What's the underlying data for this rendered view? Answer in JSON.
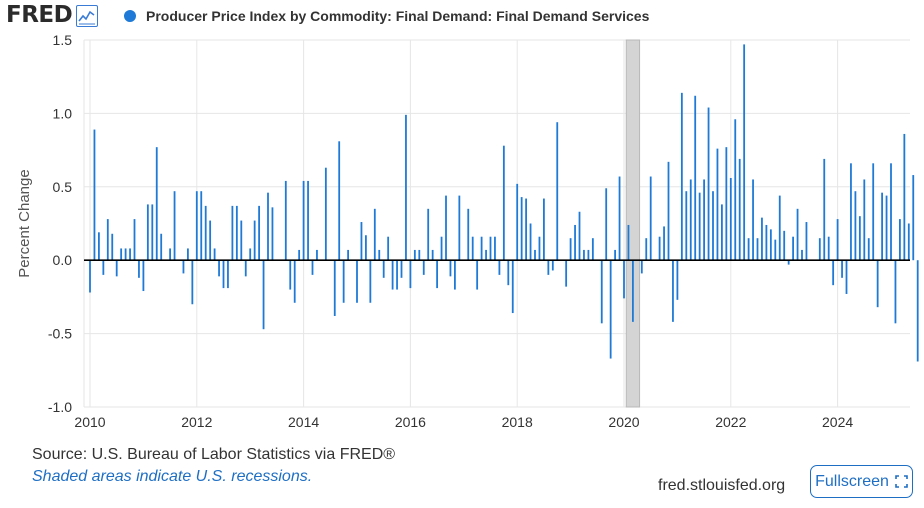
{
  "header": {
    "logo_text": "FRED",
    "logo_icon": "line-chart-icon",
    "legend_label": "Producer Price Index by Commodity: Final Demand: Final Demand Services"
  },
  "footer": {
    "source": "Source: U.S. Bureau of Labor Statistics via FRED®",
    "recession_note": "Shaded areas indicate U.S. recessions.",
    "site": "fred.stlouisfed.org",
    "fullscreen_label": "Fullscreen",
    "fullscreen_icon": "expand-icon"
  },
  "colors": {
    "series": "#1e7ad6",
    "recession": "#d4d4d4",
    "grid": "#e6e6e6",
    "zero_line": "#000000"
  },
  "chart_data": {
    "type": "bar",
    "title": "",
    "ylabel": "Percent Change",
    "xlabel": "",
    "ylim": [
      -1.0,
      1.5
    ],
    "y_ticks": [
      "1.5",
      "1.0",
      "0.5",
      "0.0",
      "-0.5",
      "-1.0"
    ],
    "x_ticks": [
      "2010",
      "2012",
      "2014",
      "2016",
      "2018",
      "2020",
      "2022",
      "2024"
    ],
    "grid": true,
    "frequency": "monthly",
    "start": "2010-01",
    "recessions": [
      {
        "start": "2020-02",
        "end": "2020-04"
      }
    ],
    "series": [
      {
        "name": "Producer Price Index by Commodity: Final Demand: Final Demand Services",
        "values": [
          -0.22,
          0.89,
          0.19,
          -0.1,
          0.28,
          0.18,
          -0.11,
          0.08,
          0.08,
          0.08,
          0.28,
          -0.12,
          -0.21,
          0.38,
          0.38,
          0.77,
          0.18,
          0.0,
          0.08,
          0.47,
          0.0,
          -0.09,
          0.08,
          -0.3,
          0.47,
          0.47,
          0.37,
          0.27,
          0.08,
          -0.11,
          -0.19,
          -0.19,
          0.37,
          0.37,
          0.27,
          -0.11,
          0.08,
          0.27,
          0.37,
          -0.47,
          0.46,
          0.36,
          0.0,
          0.0,
          0.54,
          -0.2,
          -0.29,
          0.07,
          0.54,
          0.54,
          -0.1,
          0.07,
          0.0,
          0.63,
          0.0,
          -0.38,
          0.81,
          -0.29,
          0.07,
          0.0,
          -0.29,
          0.26,
          0.17,
          -0.29,
          0.35,
          0.07,
          -0.12,
          0.16,
          -0.2,
          -0.2,
          -0.12,
          0.99,
          -0.19,
          0.07,
          0.07,
          -0.1,
          0.35,
          0.07,
          -0.19,
          0.16,
          0.44,
          -0.11,
          -0.2,
          0.44,
          0.0,
          0.35,
          0.16,
          -0.2,
          0.16,
          0.07,
          0.16,
          0.16,
          -0.1,
          0.78,
          -0.17,
          -0.36,
          0.52,
          0.43,
          0.42,
          0.25,
          0.07,
          0.16,
          0.42,
          -0.1,
          -0.07,
          0.94,
          0.0,
          -0.18,
          0.15,
          0.24,
          0.33,
          0.07,
          0.07,
          0.15,
          0.0,
          -0.43,
          0.49,
          -0.67,
          0.07,
          0.57,
          -0.26,
          0.24,
          -0.42,
          0.0,
          -0.09,
          0.15,
          0.57,
          0.0,
          0.16,
          0.23,
          0.67,
          -0.42,
          -0.27,
          1.14,
          0.47,
          0.55,
          1.12,
          0.46,
          0.55,
          1.04,
          0.47,
          0.76,
          0.38,
          0.77,
          0.56,
          0.96,
          0.69,
          1.47,
          0.15,
          0.55,
          0.15,
          0.29,
          0.24,
          0.21,
          0.14,
          0.44,
          0.2,
          -0.03,
          0.16,
          0.35,
          0.07,
          0.26,
          0.0,
          0.0,
          0.15,
          0.69,
          0.16,
          -0.17,
          0.28,
          -0.12,
          -0.23,
          0.66,
          0.47,
          0.3,
          0.55,
          0.15,
          0.66,
          -0.32,
          0.46,
          0.44,
          0.66,
          -0.43,
          0.28,
          0.86,
          0.25,
          0.58,
          -0.69
        ]
      }
    ]
  }
}
